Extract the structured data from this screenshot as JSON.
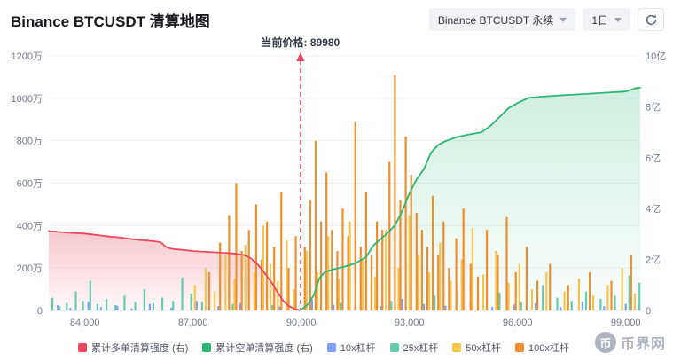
{
  "header": {
    "title": "Binance BTCUSDT 清算地图",
    "symbol_select": "Binance BTCUSDT 永续",
    "interval_select": "1日"
  },
  "annotation": {
    "label": "当前价格: 89980"
  },
  "watermark": {
    "text": "币界网",
    "icon_glyph": "币"
  },
  "legend": [
    {
      "label": "累计多单清算强度 (右)",
      "color": "#e8495c"
    },
    {
      "label": "累计空单清算强度 (右)",
      "color": "#2bb673"
    },
    {
      "label": "10x杠杆",
      "color": "#7f9ef7"
    },
    {
      "label": "25x杠杆",
      "color": "#68cbb0"
    },
    {
      "label": "50x杠杆",
      "color": "#f6c550"
    },
    {
      "label": "100x杠杆",
      "color": "#ef8e2e"
    }
  ],
  "chart_data": {
    "type": "mixed",
    "title": "Binance BTCUSDT 清算地图",
    "current_price": 89980,
    "axes": {
      "x_min": 83000,
      "x_max": 99400,
      "x_ticks": [
        [
          84000,
          "84,000"
        ],
        [
          87000,
          "87,000"
        ],
        [
          90000,
          "90,000"
        ],
        [
          93000,
          "93,000"
        ],
        [
          96000,
          "96,000"
        ],
        [
          99000,
          "99,000"
        ]
      ],
      "left_max": 1200,
      "left_unit": "万",
      "left_ticks": [
        [
          0,
          "0"
        ],
        [
          200,
          "200万"
        ],
        [
          400,
          "400万"
        ],
        [
          600,
          "600万"
        ],
        [
          800,
          "800万"
        ],
        [
          1000,
          "1000万"
        ],
        [
          1200,
          "1200万"
        ]
      ],
      "right_max": 10,
      "right_unit": "亿",
      "right_ticks": [
        [
          0,
          "0"
        ],
        [
          2,
          "2亿"
        ],
        [
          4,
          "4亿"
        ],
        [
          6,
          "6亿"
        ],
        [
          8,
          "8亿"
        ],
        [
          10,
          "10亿"
        ]
      ],
      "grid": true
    },
    "cumulative_long": {
      "name": "累计多单清算强度",
      "axis": "right",
      "unit": "亿",
      "color": "#e8495c",
      "points": [
        [
          83000,
          3.12
        ],
        [
          83600,
          3.05
        ],
        [
          84000,
          3.02
        ],
        [
          84300,
          2.97
        ],
        [
          84700,
          2.9
        ],
        [
          85000,
          2.86
        ],
        [
          85300,
          2.8
        ],
        [
          85600,
          2.76
        ],
        [
          85900,
          2.72
        ],
        [
          86100,
          2.68
        ],
        [
          86250,
          2.5
        ],
        [
          86400,
          2.42
        ],
        [
          86700,
          2.38
        ],
        [
          87000,
          2.33
        ],
        [
          87400,
          2.3
        ],
        [
          87800,
          2.27
        ],
        [
          88100,
          2.24
        ],
        [
          88400,
          2.18
        ],
        [
          88600,
          2.05
        ],
        [
          88800,
          1.8
        ],
        [
          89000,
          1.45
        ],
        [
          89200,
          1.05
        ],
        [
          89350,
          0.7
        ],
        [
          89500,
          0.38
        ],
        [
          89650,
          0.18
        ],
        [
          89800,
          0.07
        ],
        [
          89950,
          0.01
        ]
      ]
    },
    "cumulative_short": {
      "name": "累计空单清算强度",
      "axis": "right",
      "unit": "亿",
      "color": "#2bb673",
      "points": [
        [
          90010,
          0.03
        ],
        [
          90200,
          0.25
        ],
        [
          90350,
          0.6
        ],
        [
          90500,
          1.25
        ],
        [
          90650,
          1.5
        ],
        [
          90900,
          1.62
        ],
        [
          91200,
          1.72
        ],
        [
          91500,
          1.85
        ],
        [
          91800,
          2.1
        ],
        [
          92000,
          2.55
        ],
        [
          92200,
          2.8
        ],
        [
          92400,
          3.05
        ],
        [
          92600,
          3.35
        ],
        [
          92800,
          3.9
        ],
        [
          93000,
          4.6
        ],
        [
          93200,
          5.15
        ],
        [
          93400,
          5.55
        ],
        [
          93600,
          6.2
        ],
        [
          93800,
          6.5
        ],
        [
          94000,
          6.65
        ],
        [
          94300,
          6.8
        ],
        [
          94600,
          6.9
        ],
        [
          95000,
          7.0
        ],
        [
          95250,
          7.25
        ],
        [
          95500,
          7.6
        ],
        [
          95750,
          7.95
        ],
        [
          96000,
          8.15
        ],
        [
          96300,
          8.35
        ],
        [
          96700,
          8.4
        ],
        [
          97200,
          8.45
        ],
        [
          97800,
          8.5
        ],
        [
          98400,
          8.55
        ],
        [
          99000,
          8.6
        ],
        [
          99250,
          8.72
        ],
        [
          99400,
          8.75
        ]
      ]
    },
    "leverage_bars": [
      {
        "name": "10x杠杆",
        "axis": "left",
        "unit": "万",
        "color": "#7f9ef7",
        "bars": [
          [
            83250,
            25
          ],
          [
            83600,
            12
          ],
          [
            84100,
            40
          ],
          [
            84450,
            15
          ],
          [
            84900,
            22
          ],
          [
            85300,
            10
          ],
          [
            85800,
            30
          ],
          [
            86400,
            14
          ],
          [
            87100,
            45
          ],
          [
            87700,
            20
          ],
          [
            88300,
            35
          ],
          [
            88900,
            28
          ],
          [
            89400,
            18
          ],
          [
            90300,
            50
          ],
          [
            90900,
            26
          ],
          [
            91500,
            38
          ],
          [
            92200,
            20
          ],
          [
            92800,
            55
          ],
          [
            93400,
            30
          ],
          [
            94000,
            22
          ],
          [
            94700,
            40
          ],
          [
            95300,
            16
          ],
          [
            95900,
            28
          ],
          [
            96500,
            34
          ],
          [
            97200,
            15
          ],
          [
            97800,
            42
          ],
          [
            98400,
            20
          ],
          [
            99000,
            30
          ],
          [
            99350,
            24
          ]
        ]
      },
      {
        "name": "25x杠杆",
        "axis": "left",
        "unit": "万",
        "color": "#68cbb0",
        "bars": [
          [
            83100,
            60
          ],
          [
            83300,
            20
          ],
          [
            83500,
            35
          ],
          [
            83750,
            90
          ],
          [
            83950,
            45
          ],
          [
            84150,
            140
          ],
          [
            84350,
            30
          ],
          [
            84600,
            55
          ],
          [
            84850,
            25
          ],
          [
            85100,
            70
          ],
          [
            85400,
            40
          ],
          [
            85650,
            100
          ],
          [
            85900,
            35
          ],
          [
            86150,
            60
          ],
          [
            86450,
            45
          ],
          [
            86700,
            155
          ],
          [
            86950,
            80
          ],
          [
            87250,
            40
          ],
          [
            88100,
            30
          ],
          [
            89200,
            25
          ],
          [
            90400,
            60
          ],
          [
            91100,
            35
          ],
          [
            92500,
            45
          ],
          [
            93700,
            70
          ],
          [
            94300,
            110
          ],
          [
            94900,
            50
          ],
          [
            95500,
            85
          ],
          [
            96100,
            40
          ],
          [
            96700,
            120
          ],
          [
            97100,
            60
          ],
          [
            97500,
            45
          ],
          [
            97900,
            90
          ],
          [
            98300,
            55
          ],
          [
            98700,
            70
          ],
          [
            99100,
            165
          ],
          [
            99380,
            130
          ]
        ]
      },
      {
        "name": "50x杠杆",
        "axis": "left",
        "unit": "万",
        "color": "#f6c550",
        "bars": [
          [
            87050,
            120
          ],
          [
            87350,
            200
          ],
          [
            87600,
            90
          ],
          [
            87900,
            260
          ],
          [
            88150,
            150
          ],
          [
            88450,
            310
          ],
          [
            88700,
            180
          ],
          [
            88950,
            400
          ],
          [
            89150,
            220
          ],
          [
            89350,
            140
          ],
          [
            89600,
            330
          ],
          [
            89800,
            100
          ],
          [
            90150,
            280
          ],
          [
            90450,
            180
          ],
          [
            90750,
            350
          ],
          [
            91050,
            150
          ],
          [
            91350,
            420
          ],
          [
            91700,
            240
          ],
          [
            92050,
            160
          ],
          [
            92350,
            380
          ],
          [
            92700,
            200
          ],
          [
            93000,
            450
          ],
          [
            93250,
            260
          ],
          [
            93550,
            180
          ],
          [
            93850,
            320
          ],
          [
            94150,
            140
          ],
          [
            94450,
            240
          ],
          [
            94750,
            390
          ],
          [
            95050,
            170
          ],
          [
            95400,
            280
          ],
          [
            95750,
            130
          ],
          [
            96050,
            220
          ],
          [
            96400,
            100
          ],
          [
            96800,
            180
          ],
          [
            97300,
            90
          ],
          [
            97700,
            150
          ],
          [
            98100,
            70
          ],
          [
            98500,
            120
          ],
          [
            98900,
            200
          ],
          [
            99250,
            80
          ]
        ]
      },
      {
        "name": "100x杠杆",
        "axis": "left",
        "unit": "万",
        "color": "#ef8e2e",
        "bars": [
          [
            87450,
            180
          ],
          [
            87750,
            320
          ],
          [
            88000,
            450
          ],
          [
            88200,
            600
          ],
          [
            88350,
            280
          ],
          [
            88550,
            380
          ],
          [
            88750,
            500
          ],
          [
            88900,
            240
          ],
          [
            89050,
            420
          ],
          [
            89250,
            300
          ],
          [
            89450,
            560
          ],
          [
            89650,
            200
          ],
          [
            89850,
            350
          ],
          [
            90100,
            300
          ],
          [
            90250,
            520
          ],
          [
            90400,
            800
          ],
          [
            90550,
            420
          ],
          [
            90700,
            650
          ],
          [
            90850,
            380
          ],
          [
            91000,
            280
          ],
          [
            91150,
            480
          ],
          [
            91300,
            350
          ],
          [
            91500,
            890
          ],
          [
            91650,
            300
          ],
          [
            91800,
            560
          ],
          [
            91950,
            260
          ],
          [
            92100,
            420
          ],
          [
            92250,
            380
          ],
          [
            92450,
            700
          ],
          [
            92600,
            1110
          ],
          [
            92750,
            520
          ],
          [
            92900,
            820
          ],
          [
            93050,
            640
          ],
          [
            93200,
            460
          ],
          [
            93350,
            380
          ],
          [
            93500,
            300
          ],
          [
            93650,
            540
          ],
          [
            93800,
            260
          ],
          [
            93950,
            420
          ],
          [
            94100,
            200
          ],
          [
            94300,
            340
          ],
          [
            94500,
            480
          ],
          [
            94700,
            220
          ],
          [
            94900,
            160
          ],
          [
            95150,
            380
          ],
          [
            95450,
            260
          ],
          [
            95700,
            440
          ],
          [
            95950,
            180
          ],
          [
            96250,
            300
          ],
          [
            96550,
            140
          ],
          [
            96900,
            220
          ],
          [
            97400,
            120
          ],
          [
            98000,
            180
          ],
          [
            98600,
            140
          ],
          [
            99150,
            260
          ]
        ]
      }
    ]
  }
}
